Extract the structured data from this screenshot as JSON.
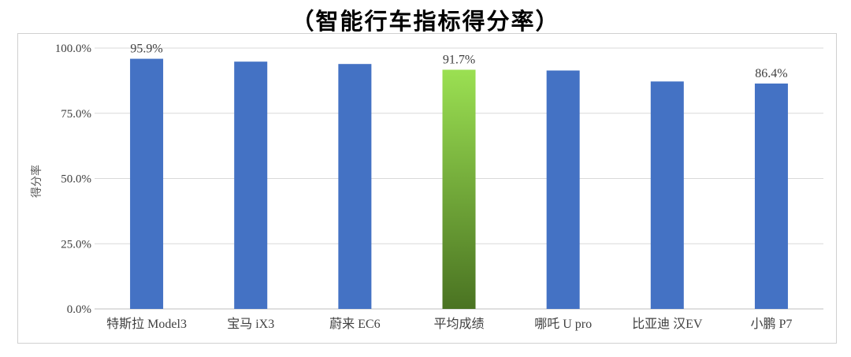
{
  "title": "（智能行车指标得分率）",
  "chart_data": {
    "type": "bar",
    "title": "（智能行车指标得分率）",
    "xlabel": "",
    "ylabel": "得分率",
    "ylim": [
      0,
      100
    ],
    "yticks": [
      "0.0%",
      "25.0%",
      "50.0%",
      "75.0%",
      "100.0%"
    ],
    "ytick_values": [
      0,
      25,
      50,
      75,
      100
    ],
    "grid": true,
    "categories": [
      "特斯拉 Model3",
      "宝马 iX3",
      "蔚来 EC6",
      "平均成绩",
      "哪吒 U pro",
      "比亚迪 汉EV",
      "小鹏 P7"
    ],
    "values": [
      95.9,
      94.8,
      93.9,
      91.7,
      91.4,
      87.2,
      86.4
    ],
    "data_labels": [
      "95.9%",
      "",
      "",
      "91.7%",
      "",
      "",
      "86.4%"
    ],
    "colors": [
      "#4472C4",
      "#4472C4",
      "#4472C4",
      "gradient-green",
      "#4472C4",
      "#4472C4",
      "#4472C4"
    ],
    "bar_color": "#4472C4",
    "highlight_gradient": [
      "#9BE052",
      "#4A7322"
    ]
  }
}
